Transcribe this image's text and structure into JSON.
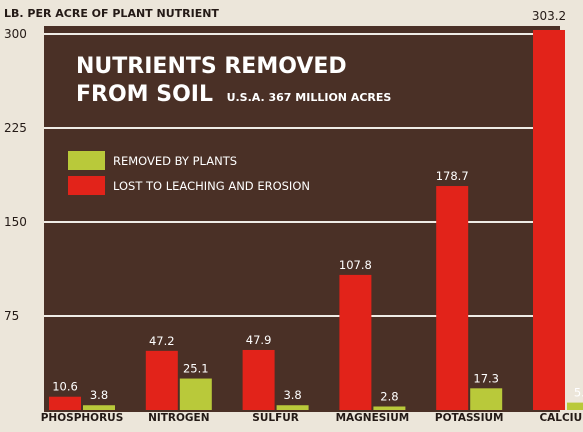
{
  "chart_data": {
    "type": "bar",
    "title": "NUTRIENTS REMOVED",
    "title_line2": "FROM SOIL",
    "subtitle": "U.S.A. 367 MILLION ACRES",
    "ylabel": "LB. PER ACRE OF PLANT NUTRIENT",
    "xlabel": "",
    "ylim": [
      0,
      300
    ],
    "yticks": [
      75,
      150,
      225,
      300
    ],
    "grid": true,
    "legend_position": "upper-left",
    "categories": [
      "PHOSPHORUS",
      "NITROGEN",
      "SULFUR",
      "MAGNESIUM",
      "POTASSIUM",
      "CALCIUM"
    ],
    "series": [
      {
        "name": "LOST TO LEACHING AND EROSION",
        "color": "#e2231a",
        "values": [
          10.6,
          47.2,
          47.9,
          107.8,
          178.7,
          303.2
        ]
      },
      {
        "name": "REMOVED BY PLANTS",
        "color": "#b9c93a",
        "values": [
          3.8,
          25.1,
          3.8,
          2.8,
          17.3,
          5.9
        ]
      }
    ],
    "legend_order": [
      1,
      0
    ],
    "colors": {
      "background": "#4a3026",
      "gridline": "#efece6",
      "text": "#ffffff",
      "page": "#ece6da",
      "dark_text": "#241a16"
    }
  }
}
